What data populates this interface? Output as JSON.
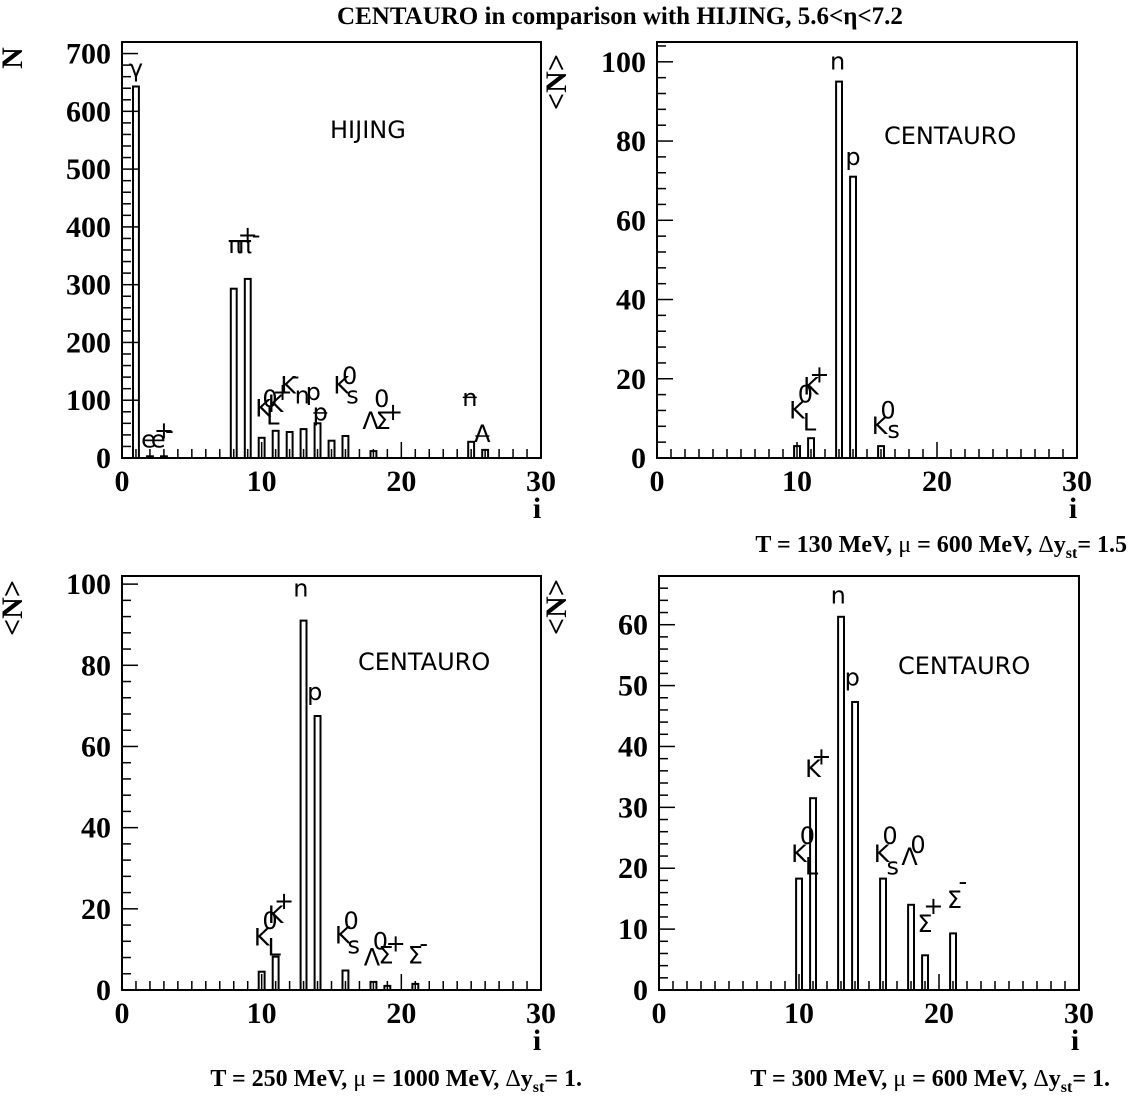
{
  "figure_title": "CENTAURO in comparison with HIJING, 5.6<η<7.2",
  "chart_data": [
    {
      "type": "bar",
      "panel": "top-left",
      "ylabel": "N",
      "xlabel": "i",
      "xlim": [
        0,
        30
      ],
      "ylim": [
        0,
        720
      ],
      "yticks": [
        0,
        100,
        200,
        300,
        400,
        500,
        600,
        700
      ],
      "xticks": [
        0,
        10,
        20,
        30
      ],
      "model_label": "HIJING",
      "caption_parts": [],
      "bars": [
        {
          "x": 1,
          "value": 643
        },
        {
          "x": 2,
          "value": 3
        },
        {
          "x": 3,
          "value": 3
        },
        {
          "x": 8,
          "value": 293
        },
        {
          "x": 9,
          "value": 310
        },
        {
          "x": 10,
          "value": 35
        },
        {
          "x": 11,
          "value": 47
        },
        {
          "x": 12,
          "value": 45
        },
        {
          "x": 13,
          "value": 50
        },
        {
          "x": 14,
          "value": 60
        },
        {
          "x": 15,
          "value": 30
        },
        {
          "x": 16,
          "value": 38
        },
        {
          "x": 18,
          "value": 12
        },
        {
          "x": 25,
          "value": 28
        },
        {
          "x": 26,
          "value": 14
        }
      ],
      "particle_labels": [
        {
          "text": "γ",
          "x": 1,
          "y": 660
        },
        {
          "text": "e",
          "x": 1.9,
          "y": 18
        },
        {
          "text": "e",
          "x": 2.6,
          "y": 18
        },
        {
          "text": "+",
          "x": 3.0,
          "y": 34
        },
        {
          "text": "-",
          "x": 3.4,
          "y": 34
        },
        {
          "text": "π",
          "x": 8.1,
          "y": 355
        },
        {
          "text": "π",
          "x": 8.8,
          "y": 355
        },
        {
          "text": "+",
          "x": 9.0,
          "y": 372
        },
        {
          "text": "-",
          "x": 9.6,
          "y": 372
        },
        {
          "text": "K",
          "x": 10.1,
          "y": 72
        },
        {
          "text": "0",
          "x": 10.6,
          "y": 88
        },
        {
          "text": "L",
          "x": 10.8,
          "y": 58
        },
        {
          "text": "K",
          "x": 11.0,
          "y": 80
        },
        {
          "text": "+",
          "x": 11.5,
          "y": 100
        },
        {
          "text": "K",
          "x": 11.9,
          "y": 112
        },
        {
          "text": "-",
          "x": 12.4,
          "y": 128
        },
        {
          "text": "n",
          "x": 12.9,
          "y": 94
        },
        {
          "text": "p",
          "x": 13.7,
          "y": 100
        },
        {
          "text": "p",
          "x": 14.2,
          "y": 65
        },
        {
          "text": "K",
          "x": 15.7,
          "y": 112
        },
        {
          "text": "0",
          "x": 16.3,
          "y": 128
        },
        {
          "text": "s",
          "x": 16.5,
          "y": 94
        },
        {
          "text": "Λ",
          "x": 17.8,
          "y": 50
        },
        {
          "text": "0",
          "x": 18.6,
          "y": 88
        },
        {
          "text": "Σ",
          "x": 18.7,
          "y": 50
        },
        {
          "text": "+",
          "x": 19.4,
          "y": 66
        },
        {
          "text": "n",
          "x": 24.9,
          "y": 90
        },
        {
          "text": "Λ",
          "x": 25.8,
          "y": 28
        }
      ],
      "overbars": [
        {
          "x": 14.2,
          "y": 78
        },
        {
          "x": 24.9,
          "y": 105
        },
        {
          "x": 25.8,
          "y": 38
        }
      ]
    },
    {
      "type": "bar",
      "panel": "top-right",
      "ylabel": "<N>",
      "xlabel": "i",
      "xlim": [
        0,
        30
      ],
      "ylim": [
        0,
        105
      ],
      "yticks": [
        0,
        20,
        40,
        60,
        80,
        100
      ],
      "xticks": [
        0,
        10,
        20,
        30
      ],
      "model_label": "CENTAURO",
      "caption_parts": [
        "T = 130 MeV, ",
        "μ",
        " = 600 MeV, ",
        "Δ",
        "y",
        "st",
        "= ",
        "1.5"
      ],
      "bars": [
        {
          "x": 10,
          "value": 3
        },
        {
          "x": 11,
          "value": 5
        },
        {
          "x": 13,
          "value": 95
        },
        {
          "x": 14,
          "value": 71
        },
        {
          "x": 16,
          "value": 3
        }
      ],
      "particle_labels": [
        {
          "text": "n",
          "x": 12.9,
          "y": 98
        },
        {
          "text": "p",
          "x": 14.0,
          "y": 74
        },
        {
          "text": "K",
          "x": 10.0,
          "y": 10
        },
        {
          "text": "0",
          "x": 10.6,
          "y": 14
        },
        {
          "text": "L",
          "x": 10.9,
          "y": 7
        },
        {
          "text": "K",
          "x": 11.0,
          "y": 16
        },
        {
          "text": "+",
          "x": 11.6,
          "y": 19
        },
        {
          "text": "K",
          "x": 15.9,
          "y": 6
        },
        {
          "text": "0",
          "x": 16.5,
          "y": 10
        },
        {
          "text": "s",
          "x": 16.9,
          "y": 5
        }
      ],
      "overbars": []
    },
    {
      "type": "bar",
      "panel": "bottom-left",
      "ylabel": "<N>",
      "xlabel": "i",
      "xlim": [
        0,
        30
      ],
      "ylim": [
        0,
        102
      ],
      "yticks": [
        0,
        20,
        40,
        60,
        80,
        100
      ],
      "xticks": [
        0,
        10,
        20,
        30
      ],
      "model_label": "CENTAURO",
      "caption_parts": [
        "T = 250 MeV, ",
        "μ",
        " = 1000 MeV, ",
        "Δ",
        "y",
        "st",
        "= ",
        "1."
      ],
      "bars": [
        {
          "x": 10,
          "value": 4.5
        },
        {
          "x": 11,
          "value": 8.2
        },
        {
          "x": 13,
          "value": 91
        },
        {
          "x": 14,
          "value": 67.5
        },
        {
          "x": 16,
          "value": 4.8
        },
        {
          "x": 18,
          "value": 2.0
        },
        {
          "x": 19,
          "value": 1.0
        },
        {
          "x": 21,
          "value": 1.5
        }
      ],
      "particle_labels": [
        {
          "text": "n",
          "x": 12.8,
          "y": 97
        },
        {
          "text": "p",
          "x": 13.8,
          "y": 71.5
        },
        {
          "text": "K",
          "x": 10.0,
          "y": 11
        },
        {
          "text": "0",
          "x": 10.6,
          "y": 15
        },
        {
          "text": "L",
          "x": 10.9,
          "y": 8.5
        },
        {
          "text": "K",
          "x": 11.0,
          "y": 16.5
        },
        {
          "text": "+",
          "x": 11.6,
          "y": 20
        },
        {
          "text": "K",
          "x": 15.8,
          "y": 11.5
        },
        {
          "text": "0",
          "x": 16.4,
          "y": 15
        },
        {
          "text": "s",
          "x": 16.6,
          "y": 9
        },
        {
          "text": "Λ",
          "x": 17.9,
          "y": 6
        },
        {
          "text": "0",
          "x": 18.5,
          "y": 10
        },
        {
          "text": "Σ",
          "x": 18.9,
          "y": 6.5
        },
        {
          "text": "+",
          "x": 19.6,
          "y": 9.5
        },
        {
          "text": "Σ",
          "x": 21.0,
          "y": 6.5
        },
        {
          "text": "-",
          "x": 21.6,
          "y": 9.5
        }
      ],
      "overbars": []
    },
    {
      "type": "bar",
      "panel": "bottom-right",
      "ylabel": "<N>",
      "xlabel": "i",
      "xlim": [
        0,
        30
      ],
      "ylim": [
        0,
        68
      ],
      "yticks": [
        0,
        10,
        20,
        30,
        40,
        50,
        60
      ],
      "xticks": [
        0,
        10,
        20,
        30
      ],
      "model_label": "CENTAURO",
      "caption_parts": [
        "T = 300 MeV, ",
        "μ",
        " = 600 MeV, ",
        "Δ",
        "y",
        "st",
        "= ",
        "1."
      ],
      "bars": [
        {
          "x": 10,
          "value": 18.3
        },
        {
          "x": 11,
          "value": 31.5
        },
        {
          "x": 13,
          "value": 61.3
        },
        {
          "x": 14,
          "value": 47.3
        },
        {
          "x": 16,
          "value": 18.3
        },
        {
          "x": 18,
          "value": 14.0
        },
        {
          "x": 19,
          "value": 5.7
        },
        {
          "x": 21,
          "value": 9.3
        }
      ],
      "particle_labels": [
        {
          "text": "n",
          "x": 12.8,
          "y": 63.5
        },
        {
          "text": "p",
          "x": 13.8,
          "y": 50
        },
        {
          "text": "K",
          "x": 11.0,
          "y": 35
        },
        {
          "text": "+",
          "x": 11.6,
          "y": 37
        },
        {
          "text": "K",
          "x": 10.0,
          "y": 21
        },
        {
          "text": "0",
          "x": 10.6,
          "y": 24
        },
        {
          "text": "L",
          "x": 10.9,
          "y": 19
        },
        {
          "text": "K",
          "x": 15.9,
          "y": 21
        },
        {
          "text": "0",
          "x": 16.5,
          "y": 24
        },
        {
          "text": "s",
          "x": 16.7,
          "y": 19
        },
        {
          "text": "Λ",
          "x": 17.9,
          "y": 20.5
        },
        {
          "text": "0",
          "x": 18.5,
          "y": 22.5
        },
        {
          "text": "Σ",
          "x": 19.0,
          "y": 9.5
        },
        {
          "text": "+",
          "x": 19.6,
          "y": 12.5
        },
        {
          "text": "Σ",
          "x": 21.1,
          "y": 13.5
        },
        {
          "text": "-",
          "x": 21.7,
          "y": 16.5
        }
      ],
      "overbars": []
    }
  ]
}
